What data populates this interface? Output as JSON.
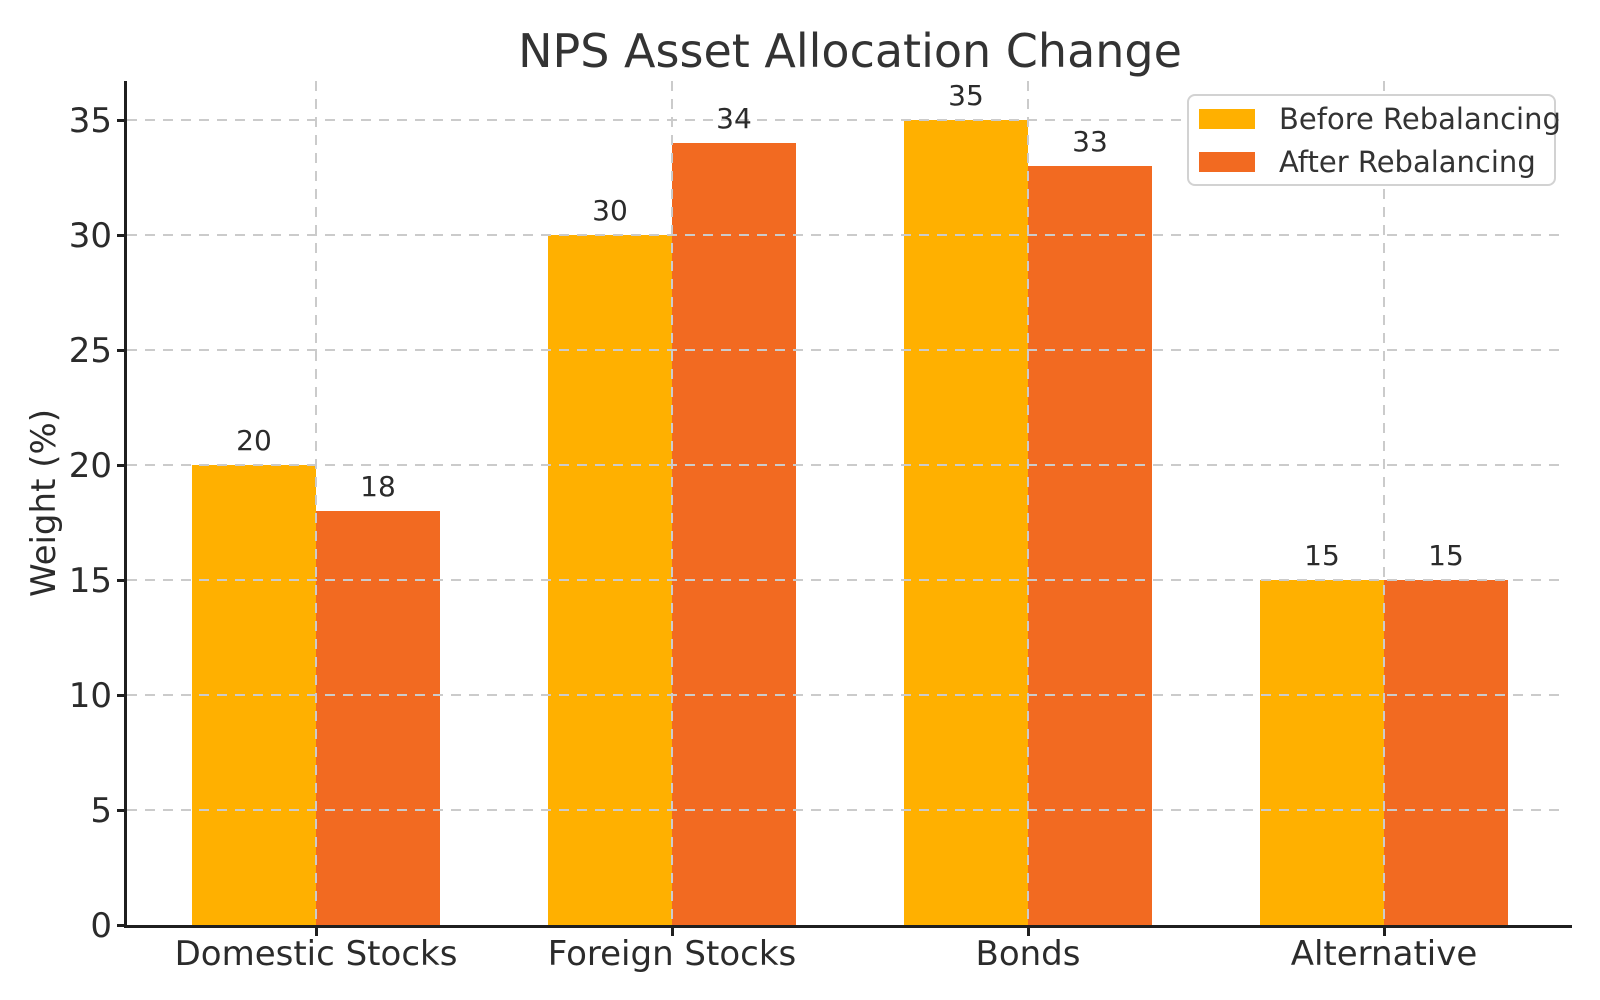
{
  "chart_data": {
    "type": "bar",
    "title": "NPS Asset Allocation Change",
    "xlabel": "",
    "ylabel": "Weight (%)",
    "categories": [
      "Domestic Stocks",
      "Foreign Stocks",
      "Bonds",
      "Alternative"
    ],
    "series": [
      {
        "name": "Before Rebalancing",
        "color": "#FFB000",
        "values": [
          20,
          30,
          35,
          15
        ]
      },
      {
        "name": "After Rebalancing",
        "color": "#F26A21",
        "values": [
          18,
          34,
          33,
          15
        ]
      }
    ],
    "bar_value_labels": {
      "before": [
        20,
        30,
        35,
        15
      ],
      "after": [
        18,
        34,
        33,
        15
      ]
    },
    "yticks": [
      0,
      5,
      10,
      15,
      20,
      25,
      30,
      35
    ],
    "ylim": [
      0,
      36.7
    ],
    "grid": true,
    "grid_style": "dashed",
    "grid_color": "#cbcbcb",
    "legend_position": "upper right",
    "axis_color": "#1f1f1f",
    "text_color": "#2b2b2b"
  }
}
